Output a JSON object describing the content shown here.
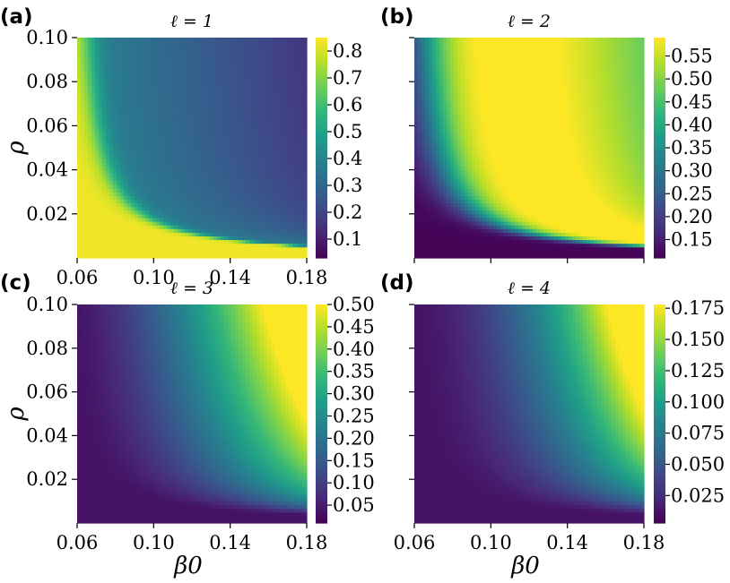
{
  "chart_data": [
    {
      "panel_label": "(a)",
      "title": "ℓ = 1",
      "type": "heatmap",
      "field": "l1",
      "xlim": [
        0.06,
        0.18
      ],
      "ylim": [
        0.0,
        0.1
      ],
      "x_ticks": [
        "0.06",
        "0.10",
        "0.14",
        "0.18"
      ],
      "y_ticks": [
        "0.02",
        "0.04",
        "0.06",
        "0.08",
        "0.10"
      ],
      "xlabel": "",
      "ylabel": "ρ",
      "colorbar": {
        "min": 0.03,
        "max": 0.85,
        "ticks": [
          0.1,
          0.2,
          0.3,
          0.4,
          0.5,
          0.6,
          0.7,
          0.8
        ],
        "tick_labels": [
          "0.1",
          "0.2",
          "0.3",
          "0.4",
          "0.5",
          "0.6",
          "0.7",
          "0.8"
        ]
      },
      "colormap": "viridis"
    },
    {
      "panel_label": "(b)",
      "title": "ℓ = 2",
      "type": "heatmap",
      "field": "l2",
      "xlim": [
        0.06,
        0.18
      ],
      "ylim": [
        0.0,
        0.1
      ],
      "x_ticks": [
        "",
        "",
        "",
        ""
      ],
      "y_ticks": [
        "",
        "",
        "",
        "",
        ""
      ],
      "xlabel": "",
      "ylabel": "",
      "colorbar": {
        "min": 0.11,
        "max": 0.59,
        "ticks": [
          0.15,
          0.2,
          0.25,
          0.3,
          0.35,
          0.4,
          0.45,
          0.5,
          0.55
        ],
        "tick_labels": [
          "0.15",
          "0.20",
          "0.25",
          "0.30",
          "0.35",
          "0.40",
          "0.45",
          "0.50",
          "0.55"
        ]
      },
      "colormap": "viridis"
    },
    {
      "panel_label": "(c)",
      "title": "ℓ = 3",
      "type": "heatmap",
      "field": "l3",
      "xlim": [
        0.06,
        0.18
      ],
      "ylim": [
        0.0,
        0.1
      ],
      "x_ticks": [
        "0.06",
        "0.10",
        "0.14",
        "0.18"
      ],
      "y_ticks": [
        "0.02",
        "0.04",
        "0.06",
        "0.08",
        "0.10"
      ],
      "xlabel": "β0",
      "ylabel": "ρ",
      "colorbar": {
        "min": 0.01,
        "max": 0.5,
        "ticks": [
          0.05,
          0.1,
          0.15,
          0.2,
          0.25,
          0.3,
          0.35,
          0.4,
          0.45,
          0.5
        ],
        "tick_labels": [
          "0.05",
          "0.10",
          "0.15",
          "0.20",
          "0.25",
          "0.30",
          "0.35",
          "0.40",
          "0.45",
          "0.50"
        ]
      },
      "colormap": "viridis"
    },
    {
      "panel_label": "(d)",
      "title": "ℓ = 4",
      "type": "heatmap",
      "field": "l4",
      "xlim": [
        0.06,
        0.18
      ],
      "ylim": [
        0.0,
        0.1
      ],
      "x_ticks": [
        "0.06",
        "0.10",
        "0.14",
        "0.18"
      ],
      "y_ticks": [
        "",
        "",
        "",
        "",
        ""
      ],
      "xlabel": "β0",
      "ylabel": "",
      "colorbar": {
        "min": 0.003,
        "max": 0.178,
        "ticks": [
          0.025,
          0.05,
          0.075,
          0.1,
          0.125,
          0.15,
          0.175
        ],
        "tick_labels": [
          "0.025",
          "0.050",
          "0.075",
          "0.100",
          "0.125",
          "0.150",
          "0.175"
        ]
      },
      "colormap": "viridis"
    }
  ]
}
